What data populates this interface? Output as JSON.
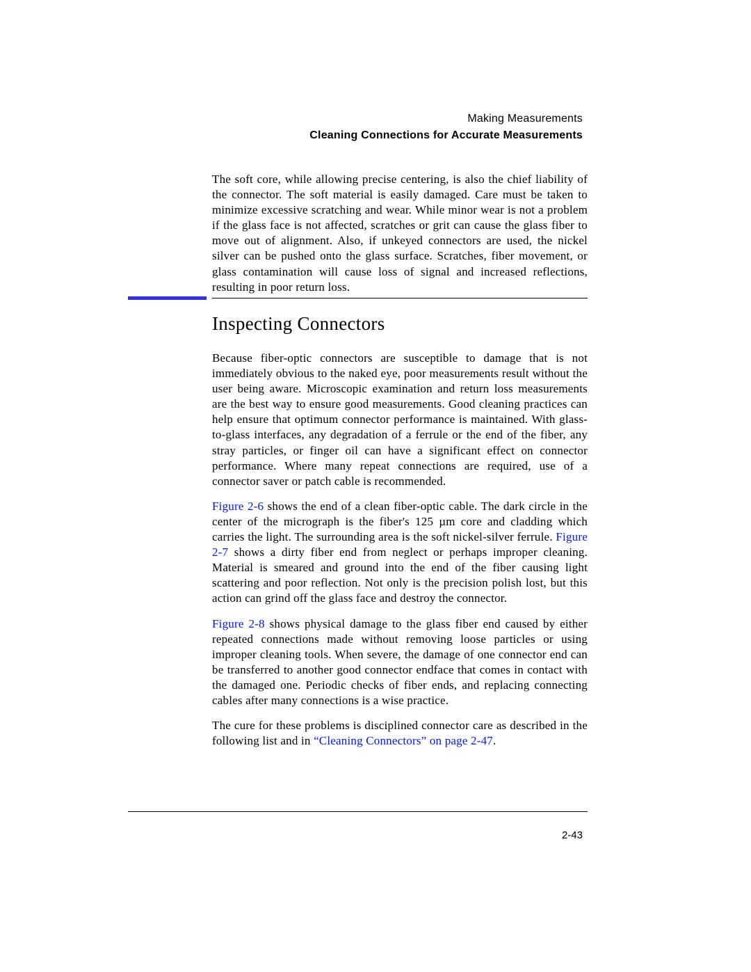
{
  "colors": {
    "link": "#0015ff",
    "blue_rule": "#3030e8",
    "text": "#000000",
    "background": "#ffffff"
  },
  "typography": {
    "body_font": "Century Schoolbook serif",
    "header_font": "Helvetica sans-serif",
    "body_size_pt": 13,
    "heading_size_pt": 20,
    "header_size_pt": 12
  },
  "header": {
    "chapter": "Making Measurements",
    "section": "Cleaning Connections for Accurate Measurements"
  },
  "intro_paragraph": "The soft core, while allowing precise centering, is also the chief liability of the connector. The soft material is easily damaged. Care must be taken to minimize excessive scratching and wear. While minor wear is not a problem if the glass face is not affected, scratches or grit can cause the glass fiber to move out of alignment. Also, if unkeyed connectors are used, the nickel silver can be pushed onto the glass surface. Scratches, fiber movement, or glass contamination will cause loss of signal and increased reflections, resulting in poor return loss.",
  "section_heading": "Inspecting Connectors",
  "paragraphs": {
    "p1": "Because fiber-optic connectors are susceptible to damage that is not immediately obvious to the naked eye, poor measurements result without the user being aware. Microscopic examination and return loss measurements are the best way to ensure good measurements. Good cleaning practices can help ensure that optimum connector performance is maintained. With glass-to-glass interfaces, any degradation of a ferrule or the end of the fiber, any stray particles, or finger oil can have a significant effect on connector performance. Where many repeat connections are required, use of a connector saver or patch cable is recommended.",
    "p2_a": " shows the end of a clean fiber-optic cable. The dark circle in the center of the micrograph is the fiber's 125 µm core and cladding which carries the light. The surrounding area is the soft nickel-silver ferrule. ",
    "p2_b": " shows a dirty fiber end from neglect or perhaps improper cleaning. Material is smeared and ground into the end of the fiber causing light scattering and poor reflection. Not only is the precision polish lost, but this action can grind off the glass face and destroy the connector.",
    "p3_a": " shows physical damage to the glass fiber end caused by either repeated connections made without removing loose particles or using improper cleaning tools. When severe, the damage of one connector end can be transferred to another good connector endface that comes in contact with the damaged one. Periodic checks of fiber ends, and replacing connecting cables after many connections is a wise practice.",
    "p4_a": "The cure for these problems is disciplined connector care as described in the following list and in ",
    "p4_b": "."
  },
  "links": {
    "fig26": "Figure 2-6",
    "fig27": "Figure 2-7",
    "fig28": "Figure 2-8",
    "cleaning": "“Cleaning Connectors” on page 2-47"
  },
  "page_number": "2-43"
}
